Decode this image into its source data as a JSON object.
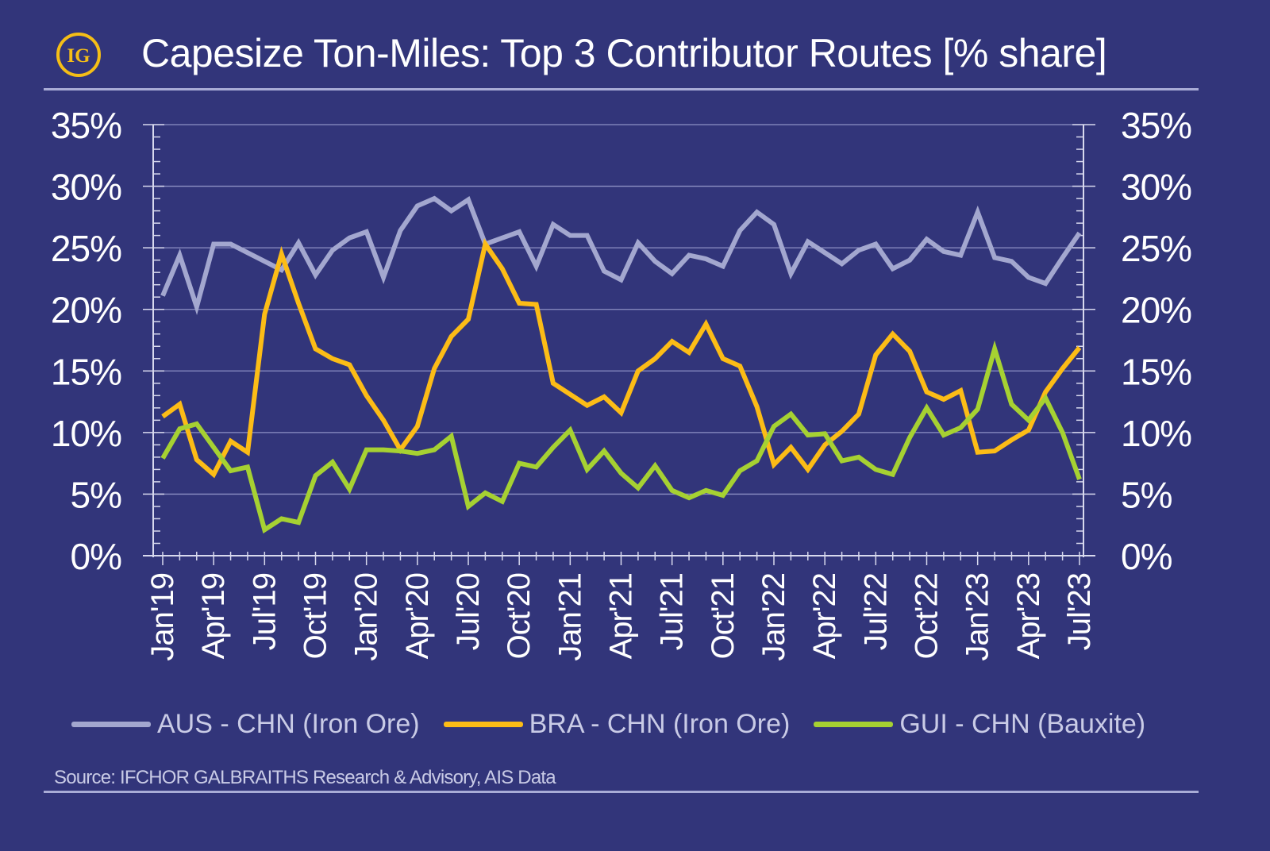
{
  "header": {
    "title": "Capesize Ton-Miles: Top 3 Contributor Routes [% share]",
    "logo_text": "IG"
  },
  "footer": {
    "source": "Source: IFCHOR GALBRAITHS Research & Advisory, AIS Data"
  },
  "colors": {
    "background": "#32357a",
    "logo": "#f5be16"
  },
  "chart_data": {
    "type": "line",
    "title": "Capesize Ton-Miles: Top 3 Contributor Routes [% share]",
    "xlabel": "",
    "ylabel": "",
    "ylim": [
      0,
      35
    ],
    "y_ticks": [
      "0%",
      "5%",
      "10%",
      "15%",
      "20%",
      "25%",
      "30%",
      "35%"
    ],
    "secondary_y_ticks": [
      "0%",
      "5%",
      "10%",
      "15%",
      "20%",
      "25%",
      "30%",
      "35%"
    ],
    "x_tick_labels": [
      "Jan'19",
      "Apr'19",
      "Jul'19",
      "Oct'19",
      "Jan'20",
      "Apr'20",
      "Jul'20",
      "Oct'20",
      "Jan'21",
      "Apr'21",
      "Jul'21",
      "Oct'21",
      "Jan'22",
      "Apr'22",
      "Jul'22",
      "Oct'22",
      "Jan'23",
      "Apr'23",
      "Jul'23"
    ],
    "x_range": [
      "Jan'19",
      "Jul'23"
    ],
    "grid": true,
    "legend": "bottom",
    "series": [
      {
        "name": "AUS - CHN (Iron Ore)",
        "color": "#a3a7cf",
        "values": [
          21.1,
          24.4,
          20.2,
          25.3,
          25.3,
          24.6,
          23.9,
          23.2,
          25.4,
          22.8,
          24.8,
          25.8,
          26.3,
          22.6,
          26.4,
          28.4,
          29.0,
          28.0,
          28.9,
          25.3,
          25.8,
          26.3,
          23.5,
          26.9,
          26.0,
          26.0,
          23.1,
          22.4,
          25.4,
          23.9,
          22.9,
          24.4,
          24.1,
          23.5,
          26.4,
          27.9,
          26.9,
          22.9,
          25.5,
          24.6,
          23.7,
          24.8,
          25.3,
          23.3,
          24.0,
          25.7,
          24.7,
          24.4,
          27.9,
          24.2,
          23.9,
          22.6,
          22.1,
          24.2,
          26.2
        ]
      },
      {
        "name": "BRA - CHN (Iron Ore)",
        "color": "#fcbc16",
        "values": [
          11.3,
          12.3,
          7.8,
          6.6,
          9.3,
          8.4,
          19.6,
          24.5,
          20.5,
          16.8,
          16.0,
          15.5,
          13.0,
          11.0,
          8.6,
          10.5,
          15.2,
          17.8,
          19.2,
          25.3,
          23.3,
          20.5,
          20.4,
          14.0,
          13.1,
          12.2,
          12.9,
          11.6,
          15.0,
          16.0,
          17.4,
          16.5,
          18.8,
          16.0,
          15.4,
          12.1,
          7.4,
          8.8,
          7.0,
          9.0,
          10.1,
          11.5,
          16.3,
          18.0,
          16.6,
          13.3,
          12.7,
          13.4,
          8.4,
          8.5,
          9.4,
          10.2,
          13.3,
          15.2,
          16.9
        ]
      },
      {
        "name": "GUI - CHN (Bauxite)",
        "color": "#a6d132",
        "values": [
          7.9,
          10.3,
          10.7,
          8.8,
          6.9,
          7.2,
          2.1,
          3.0,
          2.7,
          6.5,
          7.6,
          5.4,
          8.6,
          8.6,
          8.5,
          8.3,
          8.6,
          9.7,
          4.0,
          5.1,
          4.4,
          7.5,
          7.2,
          8.8,
          10.2,
          7.0,
          8.5,
          6.7,
          5.5,
          7.3,
          5.3,
          4.7,
          5.3,
          4.9,
          6.9,
          7.7,
          10.5,
          11.5,
          9.8,
          9.9,
          7.7,
          8.0,
          7.0,
          6.6,
          9.6,
          12.0,
          9.8,
          10.4,
          11.9,
          16.8,
          12.3,
          11.0,
          12.8,
          10.0,
          6.2
        ]
      }
    ]
  }
}
